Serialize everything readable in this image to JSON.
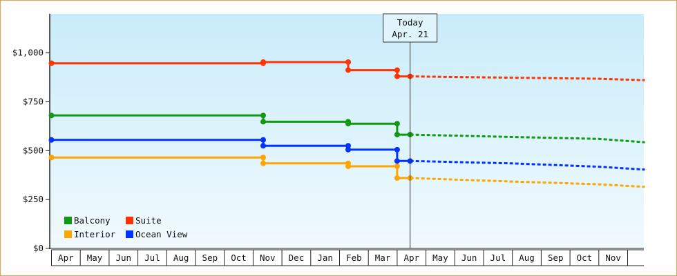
{
  "chart_data": {
    "type": "line",
    "y_ticks": [
      "$0",
      "$250",
      "$500",
      "$750",
      "$1,000"
    ],
    "ylim": [
      0,
      1200
    ],
    "x_ticks": [
      "Apr",
      "May",
      "Jun",
      "Jul",
      "Aug",
      "Sep",
      "Oct",
      "Nov",
      "Dec",
      "Jan",
      "Feb",
      "Mar",
      "Apr",
      "May",
      "Jun",
      "Jul",
      "Aug",
      "Sep",
      "Oct",
      "Nov"
    ],
    "today_marker": {
      "title": "Today",
      "date": "Apr. 21",
      "x_month_index": 12.45
    },
    "grid": false,
    "legend_position": "bottom-left",
    "series": [
      {
        "name": "Balcony",
        "color": "#119911",
        "history": [
          [
            0,
            680
          ],
          [
            7.35,
            680
          ],
          [
            7.35,
            648
          ],
          [
            10.3,
            648
          ],
          [
            10.3,
            638
          ],
          [
            12.0,
            638
          ],
          [
            12.0,
            582
          ],
          [
            12.45,
            582
          ]
        ],
        "markers": [
          [
            0,
            680
          ],
          [
            7.35,
            680
          ],
          [
            7.35,
            648
          ],
          [
            10.3,
            648
          ],
          [
            10.3,
            638
          ],
          [
            12.0,
            638
          ],
          [
            12.0,
            582
          ],
          [
            12.45,
            582
          ]
        ],
        "forecast": [
          [
            12.45,
            582
          ],
          [
            16.0,
            570
          ],
          [
            19.0,
            560
          ],
          [
            20.6,
            543
          ]
        ]
      },
      {
        "name": "Suite",
        "color": "#ff3300",
        "history": [
          [
            0,
            947
          ],
          [
            7.35,
            947
          ],
          [
            7.35,
            953
          ],
          [
            10.3,
            953
          ],
          [
            10.3,
            912
          ],
          [
            12.0,
            912
          ],
          [
            12.0,
            880
          ],
          [
            12.45,
            880
          ]
        ],
        "markers": [
          [
            0,
            947
          ],
          [
            7.35,
            947
          ],
          [
            7.35,
            953
          ],
          [
            10.3,
            953
          ],
          [
            10.3,
            912
          ],
          [
            12.0,
            912
          ],
          [
            12.0,
            880
          ],
          [
            12.45,
            880
          ]
        ],
        "forecast": [
          [
            12.45,
            880
          ],
          [
            16.0,
            873
          ],
          [
            19.0,
            868
          ],
          [
            20.6,
            860
          ]
        ]
      },
      {
        "name": "Interior",
        "color": "#ffa500",
        "history": [
          [
            0,
            465
          ],
          [
            7.35,
            465
          ],
          [
            7.35,
            435
          ],
          [
            10.3,
            435
          ],
          [
            10.3,
            420
          ],
          [
            12.0,
            420
          ],
          [
            12.0,
            360
          ],
          [
            12.45,
            360
          ]
        ],
        "markers": [
          [
            0,
            465
          ],
          [
            7.35,
            465
          ],
          [
            7.35,
            435
          ],
          [
            10.3,
            435
          ],
          [
            10.3,
            420
          ],
          [
            12.0,
            420
          ],
          [
            12.0,
            360
          ],
          [
            12.45,
            360
          ]
        ],
        "forecast": [
          [
            12.45,
            360
          ],
          [
            16.0,
            342
          ],
          [
            19.0,
            328
          ],
          [
            20.6,
            315
          ]
        ]
      },
      {
        "name": "Ocean View",
        "color": "#0033ff",
        "history": [
          [
            0,
            555
          ],
          [
            7.35,
            555
          ],
          [
            7.35,
            525
          ],
          [
            10.3,
            525
          ],
          [
            10.3,
            505
          ],
          [
            12.0,
            505
          ],
          [
            12.0,
            447
          ],
          [
            12.45,
            447
          ]
        ],
        "markers": [
          [
            0,
            555
          ],
          [
            7.35,
            555
          ],
          [
            7.35,
            525
          ],
          [
            10.3,
            525
          ],
          [
            10.3,
            505
          ],
          [
            12.0,
            505
          ],
          [
            12.0,
            447
          ],
          [
            12.45,
            447
          ]
        ],
        "forecast": [
          [
            12.45,
            447
          ],
          [
            16.0,
            435
          ],
          [
            19.0,
            418
          ],
          [
            20.6,
            403
          ]
        ]
      }
    ]
  }
}
